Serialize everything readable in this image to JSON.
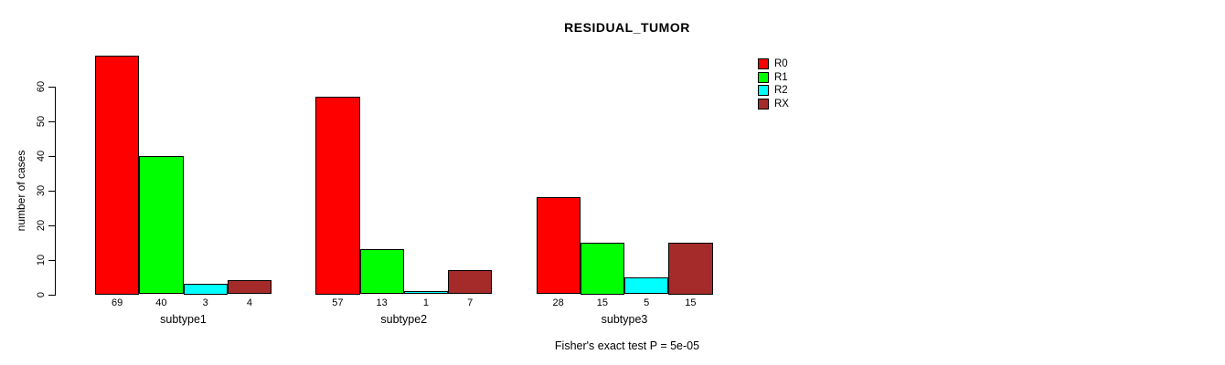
{
  "title": "RESIDUAL_TUMOR",
  "y_axis": {
    "label": "number of cases",
    "ticks": [
      0,
      10,
      20,
      30,
      40,
      50,
      60
    ]
  },
  "footer": "Fisher's exact test P = 5e-05",
  "legend": {
    "position": "right",
    "entries": [
      {
        "label": "R0",
        "color": "#FF0000"
      },
      {
        "label": "R1",
        "color": "#00FF00"
      },
      {
        "label": "R2",
        "color": "#00FFFF"
      },
      {
        "label": "RX",
        "color": "#A52A2A"
      }
    ]
  },
  "chart_data": {
    "type": "bar",
    "grouped": true,
    "title": "RESIDUAL_TUMOR",
    "xlabel": "",
    "ylabel": "number of cases",
    "ylim": [
      0,
      60
    ],
    "grid": false,
    "legend_position": "top-right",
    "categories": [
      "subtype1",
      "subtype2",
      "subtype3"
    ],
    "series": [
      {
        "name": "R0",
        "color": "#FF0000",
        "values": [
          69,
          57,
          28
        ]
      },
      {
        "name": "R1",
        "color": "#00FF00",
        "values": [
          40,
          13,
          15
        ]
      },
      {
        "name": "R2",
        "color": "#00FFFF",
        "values": [
          3,
          1,
          5
        ]
      },
      {
        "name": "RX",
        "color": "#A52A2A",
        "values": [
          4,
          7,
          15
        ]
      }
    ],
    "bar_value_labels": [
      [
        69,
        40,
        3,
        4
      ],
      [
        57,
        13,
        1,
        7
      ],
      [
        28,
        15,
        5,
        15
      ]
    ],
    "annotation": "Fisher's exact test P = 5e-05"
  }
}
